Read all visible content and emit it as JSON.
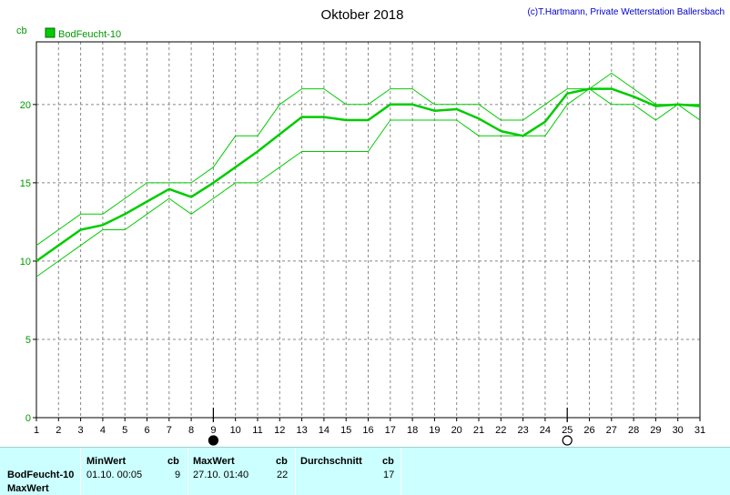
{
  "chart_data": {
    "type": "line",
    "title": "Oktober 2018",
    "copyright": "(c)T.Hartmann, Private Wetterstation Ballersbach",
    "ylabel": "cb",
    "ylim": [
      0,
      24
    ],
    "yticks": [
      0,
      5,
      10,
      15,
      20
    ],
    "xlim": [
      1,
      31
    ],
    "categories": [
      "1",
      "2",
      "3",
      "4",
      "5",
      "6",
      "7",
      "8",
      "9",
      "10",
      "11",
      "12",
      "13",
      "14",
      "15",
      "16",
      "17",
      "18",
      "19",
      "20",
      "21",
      "22",
      "23",
      "24",
      "25",
      "26",
      "27",
      "28",
      "29",
      "30",
      "31"
    ],
    "legend": "BodFeucht-10",
    "grid": true,
    "series": [
      {
        "name": "BodFeucht-10",
        "color": "#00cc00",
        "role": "avg",
        "values": [
          10.0,
          11.0,
          12.0,
          12.3,
          13.0,
          13.8,
          14.6,
          14.1,
          15.0,
          16.0,
          17.0,
          18.1,
          19.2,
          19.2,
          19.0,
          19.0,
          20.0,
          20.0,
          19.6,
          19.7,
          19.1,
          18.3,
          18.0,
          18.9,
          20.7,
          21.0,
          21.0,
          20.5,
          19.9,
          20.0,
          19.9
        ]
      },
      {
        "color": "#00cc00",
        "role": "max",
        "values": [
          11,
          12,
          13,
          13,
          14,
          15,
          15,
          15,
          16,
          18,
          18,
          20,
          21,
          21,
          20,
          20,
          21,
          21,
          20,
          20,
          20,
          19,
          19,
          20,
          21,
          21,
          22,
          21,
          20,
          20,
          20
        ]
      },
      {
        "color": "#00cc00",
        "role": "min",
        "values": [
          9,
          10,
          11,
          12,
          12,
          13,
          14,
          13,
          14,
          15,
          15,
          16,
          17,
          17,
          17,
          17,
          19,
          19,
          19,
          19,
          18,
          18,
          18,
          18,
          20,
          21,
          20,
          20,
          19,
          20,
          19
        ]
      }
    ],
    "markers": [
      {
        "day": 9,
        "symbol": "full-moon-icon"
      },
      {
        "day": 25,
        "symbol": "new-moon-icon"
      }
    ]
  },
  "stats": {
    "row_label": "BodFeucht-10",
    "row_label2": "MaxWert",
    "min_header": "MinWert",
    "min_unit": "cb",
    "min_time": "01.10.  00:05",
    "min_value": "9",
    "max_header": "MaxWert",
    "max_unit": "cb",
    "max_time": "27.10.  01:40",
    "max_value": "22",
    "avg_header": "Durchschnitt",
    "avg_unit": "cb",
    "avg_value": "17"
  }
}
